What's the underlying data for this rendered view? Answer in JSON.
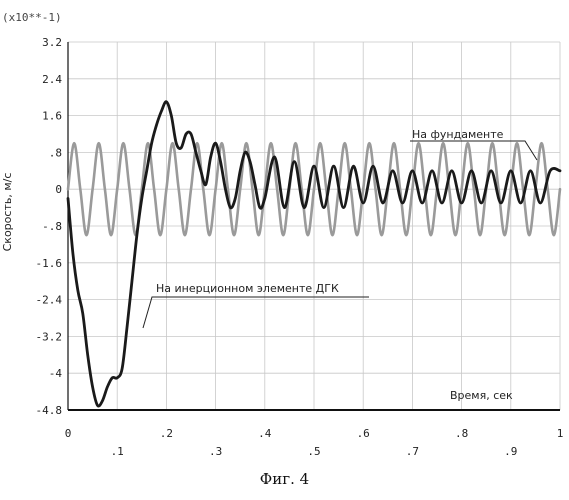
{
  "chart_data": {
    "type": "line",
    "scale_note": "(x10**-1)",
    "ylabel": "Скорость, м/с",
    "xlabel": "Время, сек",
    "xlim": [
      0,
      1
    ],
    "ylim": [
      -4.8,
      3.2
    ],
    "yticks": [
      3.2,
      2.4,
      1.6,
      0.8,
      0,
      -0.8,
      -1.6,
      -2.4,
      -3.2,
      -4,
      -4.8
    ],
    "ytick_labels": [
      "3.2",
      "2.4",
      "1.6",
      ".8",
      "0",
      "-.8",
      "-1.6",
      "-2.4",
      "-3.2",
      "-4",
      "-4.8"
    ],
    "xticks": [
      0,
      0.1,
      0.2,
      0.3,
      0.4,
      0.5,
      0.6,
      0.7,
      0.8,
      0.9,
      1
    ],
    "xtick_labels": [
      "0",
      ".1",
      ".2",
      ".3",
      ".4",
      ".5",
      ".6",
      ".7",
      ".8",
      ".9",
      "1"
    ],
    "grid": true,
    "series": [
      {
        "name": "На фундаменте",
        "color": "#9a9a9a",
        "x": [
          0,
          0.0125,
          0.025,
          0.0375,
          0.05,
          0.0625,
          0.075,
          0.0875,
          0.1,
          0.1125,
          0.125,
          0.1375,
          0.15,
          0.1625,
          0.175,
          0.1875,
          0.2,
          0.2125,
          0.225,
          0.2375,
          0.25,
          0.2625,
          0.275,
          0.2875,
          0.3,
          0.3125,
          0.325,
          0.3375,
          0.35,
          0.3625,
          0.375,
          0.3875,
          0.4,
          0.4125,
          0.425,
          0.4375,
          0.45,
          0.4625,
          0.475,
          0.4875,
          0.5,
          0.5125,
          0.525,
          0.5375,
          0.55,
          0.5625,
          0.575,
          0.5875,
          0.6,
          0.6125,
          0.625,
          0.6375,
          0.65,
          0.6625,
          0.675,
          0.6875,
          0.7,
          0.7125,
          0.725,
          0.7375,
          0.75,
          0.7625,
          0.775,
          0.7875,
          0.8,
          0.8125,
          0.825,
          0.8375,
          0.85,
          0.8625,
          0.875,
          0.8875,
          0.9,
          0.9125,
          0.925,
          0.9375,
          0.95,
          0.9625,
          0.975,
          0.9875,
          1
        ],
        "y": [
          0,
          1.0,
          0,
          -1.0,
          0,
          1.0,
          0,
          -1.0,
          0,
          1.0,
          0,
          -1.0,
          0,
          1.0,
          0,
          -1.0,
          0,
          1.0,
          0,
          -1.0,
          0,
          1.0,
          0,
          -1.0,
          0,
          1.0,
          0,
          -1.0,
          0,
          1.0,
          0,
          -1.0,
          0,
          1.0,
          0,
          -1.0,
          0,
          1.0,
          0,
          -1.0,
          0,
          1.0,
          0,
          -1.0,
          0,
          1.0,
          0,
          -1.0,
          0,
          1.0,
          0,
          -1.0,
          0,
          1.0,
          0,
          -1.0,
          0,
          1.0,
          0,
          -1.0,
          0,
          1.0,
          0,
          -1.0,
          0,
          1.0,
          0,
          -1.0,
          0,
          1.0,
          0,
          -1.0,
          0,
          1.0,
          0,
          -1.0,
          0,
          1.0,
          0,
          -1.0,
          0
        ]
      },
      {
        "name": "На инерционном элементе ДГК",
        "color": "#1a1a1a",
        "x": [
          0,
          0.01,
          0.02,
          0.03,
          0.04,
          0.05,
          0.06,
          0.07,
          0.08,
          0.09,
          0.1,
          0.11,
          0.12,
          0.13,
          0.14,
          0.15,
          0.16,
          0.17,
          0.18,
          0.19,
          0.2,
          0.21,
          0.22,
          0.23,
          0.24,
          0.25,
          0.26,
          0.27,
          0.28,
          0.29,
          0.3,
          0.31,
          0.32,
          0.33,
          0.34,
          0.35,
          0.36,
          0.37,
          0.38,
          0.39,
          0.4,
          0.42,
          0.44,
          0.46,
          0.48,
          0.5,
          0.52,
          0.54,
          0.56,
          0.58,
          0.6,
          0.62,
          0.64,
          0.66,
          0.68,
          0.7,
          0.72,
          0.74,
          0.76,
          0.78,
          0.8,
          0.82,
          0.84,
          0.86,
          0.88,
          0.9,
          0.92,
          0.94,
          0.96,
          0.98,
          1.0
        ],
        "y": [
          -0.2,
          -1.4,
          -2.2,
          -2.7,
          -3.6,
          -4.3,
          -4.7,
          -4.6,
          -4.3,
          -4.1,
          -4.1,
          -3.9,
          -3.0,
          -2.0,
          -1.0,
          -0.2,
          0.4,
          1.0,
          1.4,
          1.7,
          1.9,
          1.6,
          1.0,
          0.9,
          1.2,
          1.2,
          0.8,
          0.4,
          0.1,
          0.7,
          1.0,
          0.6,
          0,
          -0.4,
          -0.2,
          0.4,
          0.8,
          0.6,
          0.1,
          -0.4,
          -0.2,
          0.7,
          -0.4,
          0.6,
          -0.4,
          0.5,
          -0.4,
          0.5,
          -0.4,
          0.5,
          -0.3,
          0.5,
          -0.3,
          0.4,
          -0.3,
          0.4,
          -0.3,
          0.4,
          -0.3,
          0.4,
          -0.3,
          0.4,
          -0.3,
          0.4,
          -0.3,
          0.4,
          -0.3,
          0.4,
          -0.3,
          0.4,
          0.4
        ]
      }
    ]
  },
  "caption": "Фиг. 4"
}
